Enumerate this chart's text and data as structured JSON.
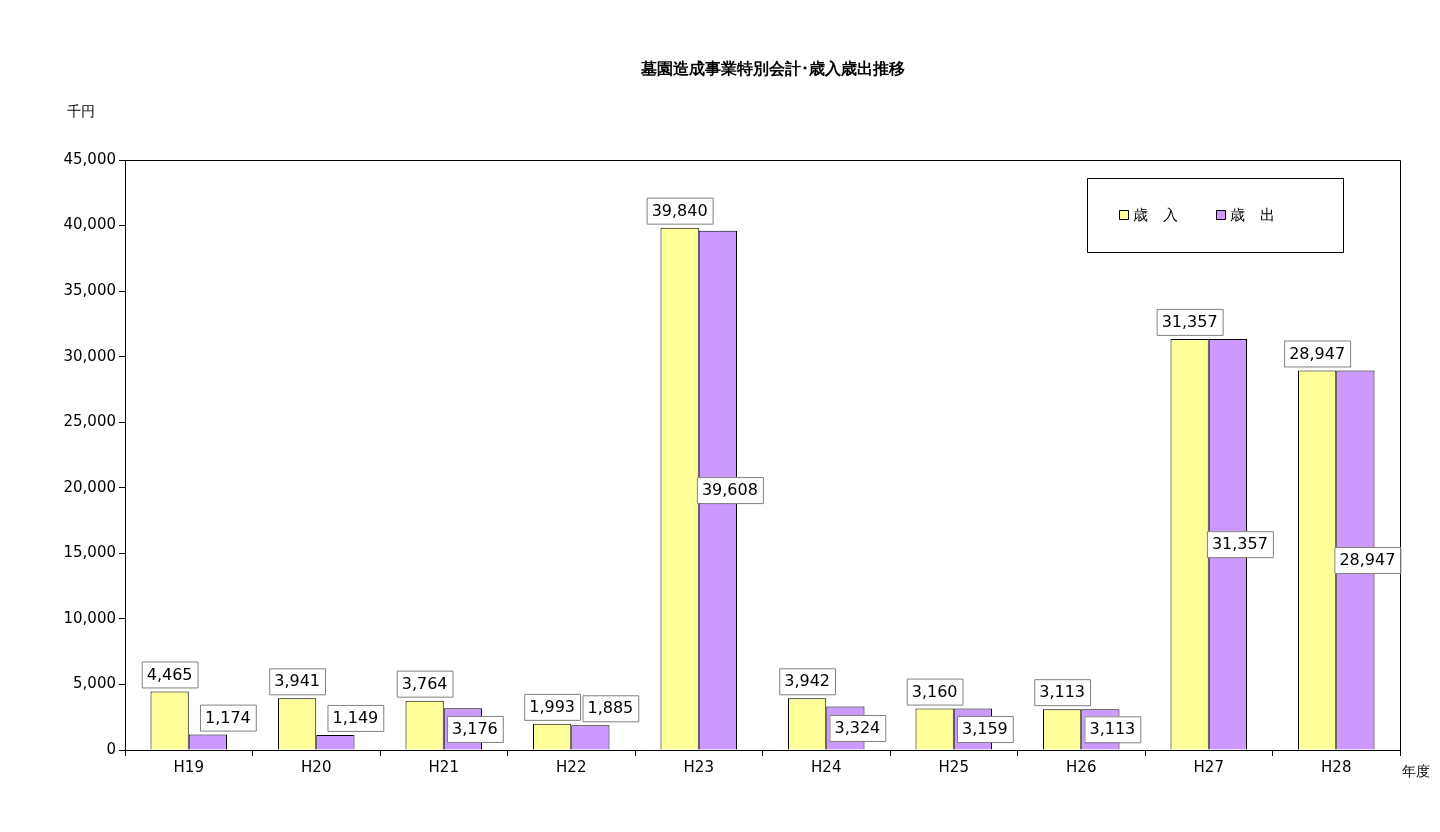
{
  "chart_data": {
    "type": "bar",
    "title": "墓園造成事業特別会計･歳入歳出推移",
    "ylabel": "千円",
    "xlabel": "年度",
    "categories": [
      "H19",
      "H20",
      "H21",
      "H22",
      "H23",
      "H24",
      "H25",
      "H26",
      "H27",
      "H28"
    ],
    "series": [
      {
        "name": "歳　入",
        "color": "#ffff99",
        "values": [
          4465,
          3941,
          3764,
          1993,
          39840,
          3942,
          3160,
          3113,
          31357,
          28947
        ],
        "value_labels": [
          "4,465",
          "3,941",
          "3,764",
          "1,993",
          "39,840",
          "3,942",
          "3,160",
          "3,113",
          "31,357",
          "28,947"
        ]
      },
      {
        "name": "歳　出",
        "color": "#cc99ff",
        "values": [
          1174,
          1149,
          3176,
          1885,
          39608,
          3324,
          3159,
          3113,
          31357,
          28947
        ],
        "value_labels": [
          "1,174",
          "1,149",
          "3,176",
          "1,885",
          "39,608",
          "3,324",
          "3,159",
          "3,113",
          "31,357",
          "28,947"
        ]
      }
    ],
    "ylim": [
      0,
      45000
    ],
    "yticks": [
      {
        "value": 0,
        "label": "0"
      },
      {
        "value": 5000,
        "label": "5,000"
      },
      {
        "value": 10000,
        "label": "10,000"
      },
      {
        "value": 15000,
        "label": "15,000"
      },
      {
        "value": 20000,
        "label": "20,000"
      },
      {
        "value": 25000,
        "label": "25,000"
      },
      {
        "value": 30000,
        "label": "30,000"
      },
      {
        "value": 35000,
        "label": "35,000"
      },
      {
        "value": 40000,
        "label": "40,000"
      },
      {
        "value": 45000,
        "label": "45,000"
      }
    ],
    "grid": false,
    "legend": "top right"
  }
}
